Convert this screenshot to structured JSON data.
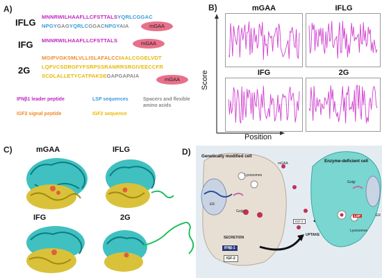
{
  "panelA": {
    "label": "A)",
    "constructs": [
      {
        "name": "IFLG"
      },
      {
        "name": "IFG"
      },
      {
        "name": "2G"
      }
    ],
    "seq_iflg_1a": "MNNRWILHAAFLLCFSTTALS",
    "seq_iflg_1b": "YQRLCGGAC",
    "seq_iflg_2a": "NPGY",
    "seq_iflg_2b": "GAG",
    "seq_iflg_2c": "YQRLC",
    "seq_iflg_2d": "GGAC",
    "seq_iflg_2e": "NPGY",
    "seq_iflg_2f": "AIA",
    "seq_ifg": "MNNRWILHAAFLLCFSTTALS",
    "seq_2g_1a": "MGIPVGKSMLVLLISLAFALCCI",
    "seq_2g_1b": "AALCGGELVDT",
    "seq_2g_2": "LQFVCSDRGFYFSRPSSRANRRSRGIVEECCFR",
    "seq_2g_3a": "SCDLALLETYCATPAKSE",
    "seq_2g_3b": "GAPGAPAIA",
    "mgaa": "mGAA",
    "legend": {
      "ifn": "IFNβ1 leader peptide",
      "lsp": "LSP sequences",
      "spacer": "Spacers and flexible amino acids",
      "igf2sig": "IGF2 signal peptide",
      "igf2seq": "IGF2 sequence"
    },
    "colors": {
      "magenta": "#c026c0",
      "blue": "#3a9ad8",
      "orange": "#f08a28",
      "yellow": "#e8b800",
      "gray": "#888888",
      "pill": "#e8708a"
    }
  },
  "panelB": {
    "label": "B)",
    "plots": [
      {
        "title": "mGAA"
      },
      {
        "title": "IFLG"
      },
      {
        "title": "IFG"
      },
      {
        "title": "2G"
      }
    ],
    "ylabel": "Score",
    "xlabel": "Position",
    "line_color": "#d040d0"
  },
  "panelC": {
    "label": "C)",
    "structures": [
      {
        "title": "mGAA"
      },
      {
        "title": "IFLG"
      },
      {
        "title": "IFG"
      },
      {
        "title": "2G"
      }
    ],
    "colors": {
      "teal": "#1fb5b5",
      "yellow": "#d9c23a",
      "orange": "#e0603a"
    }
  },
  "panelD": {
    "label": "D)",
    "left_cell": "Genetically modified cell",
    "right_cell": "Enzyme-deficient cell",
    "lysosomes": "Lysosomes",
    "lysosomes_right": "Lysosomes",
    "er": "ER",
    "er_right": "ER",
    "golgi": "Golgi",
    "golgi_right": "Golgi",
    "secretion": "SECRETION",
    "uptake": "UPTAKE",
    "ifn_tag": "IFNβ-1",
    "igf2_tag": "IGF-2",
    "igf2_small": "IGF-2",
    "lsp_tag": "LSP",
    "mgaa": "mGAA",
    "colors": {
      "cell_left": "#e8dfd4",
      "cell_right": "#7ad6d0",
      "background": "#e4ecf2"
    }
  }
}
